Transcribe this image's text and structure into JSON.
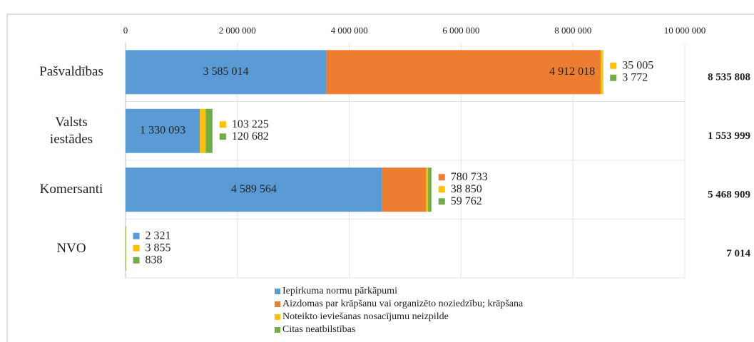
{
  "chart_data": {
    "type": "stacked_barh",
    "categories": [
      "Pašvaldības",
      "Valsts iestādes",
      "Komersanti",
      "NVO"
    ],
    "series": [
      {
        "name": "Iepirkuma normu pārkāpumi",
        "color": "#5b9bd5",
        "values": [
          3585014,
          1330093,
          4589564,
          2321
        ],
        "value_labels": [
          "3 585 014",
          "1 330 093",
          "4 589 564",
          "2 321"
        ]
      },
      {
        "name": "Aizdomas par krāpšanu vai organizēto noziedzību; krāpšana",
        "color": "#ed7d31",
        "values": [
          4912018,
          null,
          780733,
          null
        ],
        "value_labels": [
          "4 912 018",
          null,
          "780 733",
          null
        ]
      },
      {
        "name": "Noteikto ieviešanas nosacījumu neizpilde",
        "color": "#ffc000",
        "values": [
          35005,
          103225,
          38850,
          3855
        ],
        "value_labels": [
          "35 005",
          "103 225",
          "38 850",
          "3 855"
        ]
      },
      {
        "name": "Citas neatbilstības",
        "color": "#70ad47",
        "values": [
          3772,
          120682,
          59762,
          838
        ],
        "value_labels": [
          "3 772",
          "120 682",
          "59 762",
          "838"
        ]
      }
    ],
    "totals": [
      8535808,
      1553999,
      5468909,
      7014
    ],
    "total_labels": [
      "8 535 808",
      "1 553 999",
      "5 468 909",
      "7 014"
    ],
    "xlim": [
      0,
      10000000
    ],
    "xticks": [
      0,
      {
        "value": 2000000,
        "label": "2 000 000"
      },
      {
        "value": 4000000,
        "label": "4 000 000"
      },
      {
        "value": 6000000,
        "label": "6 000 000"
      },
      {
        "value": 8000000,
        "label": "8 000 000"
      },
      {
        "value": 10000000,
        "label": "10 000 000"
      }
    ],
    "grid": true
  }
}
